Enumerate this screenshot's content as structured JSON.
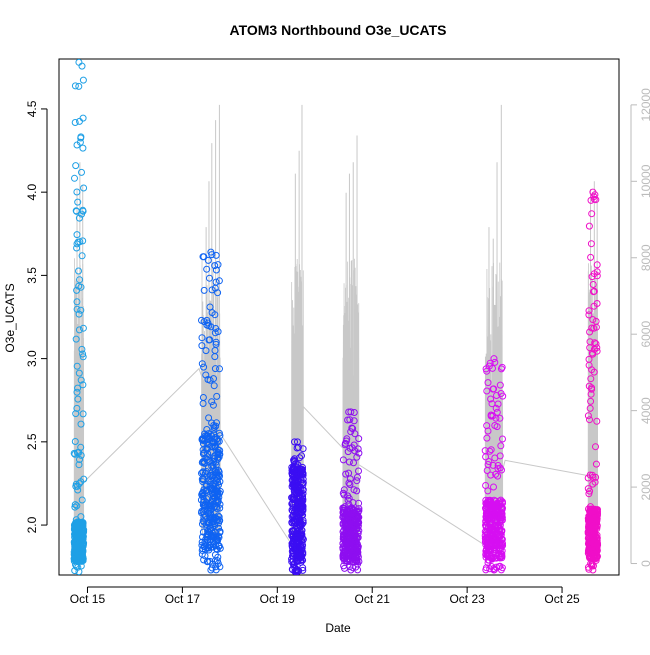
{
  "chart_data": {
    "type": "scatter",
    "title": "ATOM3 Northbound O3e_UCATS",
    "xlabel": "Date",
    "ylabel": "O3e_UCATS",
    "y_ticks": [
      2.0,
      2.5,
      3.0,
      3.5,
      4.0,
      4.5
    ],
    "y_tick_labels": [
      "2.0",
      "2.5",
      "3.0",
      "3.5",
      "4.0",
      "4.5"
    ],
    "y_right_ticks": [
      0,
      2000,
      4000,
      6000,
      8000,
      10000,
      12000
    ],
    "y_right_tick_labels": [
      "0",
      "2000",
      "4000",
      "6000",
      "8000",
      "10000",
      "12000"
    ],
    "x_ticks": [
      15,
      17,
      19,
      21,
      23,
      25
    ],
    "x_tick_labels": [
      "Oct 15",
      "Oct 17",
      "Oct 19",
      "Oct 21",
      "Oct 23",
      "Oct 25"
    ],
    "xlim": [
      14.4,
      26.2
    ],
    "ylim": [
      1.7,
      4.8
    ],
    "y_right_lim": [
      -300,
      13200
    ],
    "grid": false,
    "right_axis_color": "#bbbbbb",
    "altitude_line_color": "#c8c8c8",
    "series": [
      {
        "color": "#1fa0e6",
        "x_range": [
          14.72,
          14.92
        ],
        "y_min": 1.72,
        "y_max": 4.78,
        "base_min": 1.78,
        "base_max": 2.02,
        "altitude_spikes": [
          [
            14.78,
            9800
          ],
          [
            14.84,
            10500
          ],
          [
            14.9,
            9900
          ]
        ]
      },
      {
        "color": "#0f63f2",
        "x_range": [
          17.4,
          17.8
        ],
        "y_min": 1.73,
        "y_max": 3.64,
        "base_min": 1.85,
        "base_max": 2.55,
        "altitude_spikes": [
          [
            17.5,
            8800
          ],
          [
            17.56,
            10000
          ],
          [
            17.62,
            11000
          ],
          [
            17.7,
            11600
          ],
          [
            17.78,
            12000
          ]
        ]
      },
      {
        "color": "#3b0ef2",
        "x_range": [
          19.3,
          19.55
        ],
        "y_min": 1.72,
        "y_max": 2.5,
        "base_min": 1.78,
        "base_max": 2.35,
        "altitude_spikes": [
          [
            19.38,
            10200
          ],
          [
            19.46,
            10800
          ],
          [
            19.52,
            12000
          ]
        ]
      },
      {
        "color": "#8e0ff0",
        "x_range": [
          20.38,
          20.72
        ],
        "y_min": 1.73,
        "y_max": 2.68,
        "base_min": 1.78,
        "base_max": 2.1,
        "altitude_spikes": [
          [
            20.45,
            9700
          ],
          [
            20.52,
            10200
          ],
          [
            20.6,
            10500
          ],
          [
            20.68,
            11200
          ]
        ]
      },
      {
        "color": "#d60ff2",
        "x_range": [
          23.38,
          23.75
        ],
        "y_min": 1.73,
        "y_max": 3.0,
        "base_min": 1.8,
        "base_max": 2.15,
        "altitude_spikes": [
          [
            23.46,
            8800
          ],
          [
            23.55,
            8500
          ],
          [
            23.63,
            10500
          ],
          [
            23.72,
            12000
          ]
        ]
      },
      {
        "color": "#f00fc8",
        "x_range": [
          25.55,
          25.75
        ],
        "y_min": 1.73,
        "y_max": 4.0,
        "base_min": 1.8,
        "base_max": 2.1,
        "altitude_spikes": [
          [
            25.6,
            9800
          ],
          [
            25.68,
            10000
          ],
          [
            25.74,
            9500
          ]
        ]
      }
    ],
    "altitude_connectors": [
      [
        14.9,
        2100
      ],
      [
        17.35,
        5100
      ],
      [
        17.85,
        3300
      ],
      [
        19.3,
        500
      ],
      [
        19.55,
        4100
      ],
      [
        20.7,
        2600
      ],
      [
        23.35,
        500
      ],
      [
        23.8,
        2700
      ],
      [
        25.55,
        2300
      ]
    ]
  }
}
